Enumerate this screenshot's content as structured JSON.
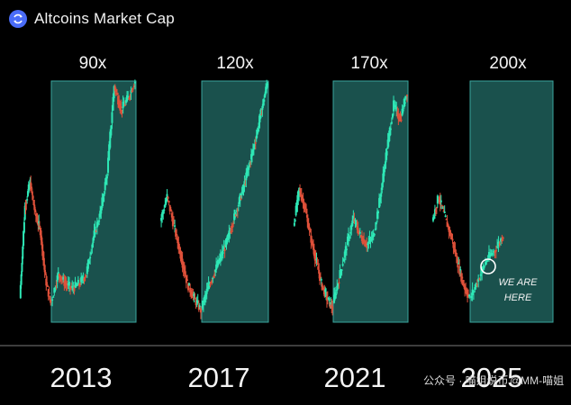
{
  "header": {
    "title": "Altcoins Market Cap",
    "logo_icon": "cycle-arrows-icon"
  },
  "annotation": {
    "text_line1": "WE ARE",
    "text_line2": "HERE"
  },
  "watermark": {
    "left": "公众号 · 喵姐说币",
    "right": "@MM-喵姐"
  },
  "colors": {
    "background": "#000000",
    "box": "#1e5f5b",
    "up": "#2ee8b6",
    "down": "#e0513a"
  },
  "chart_data": {
    "type": "line",
    "title": "Altcoins Market Cap",
    "note": "Four-panel stylized candlestick comparison of altcoin market cap cycles",
    "panels": [
      {
        "year": "2013",
        "multiplier": "90x",
        "pre_box": [
          0.1,
          0.48,
          0.58,
          0.45,
          0.38,
          0.18,
          0.08
        ],
        "box": [
          0.09,
          0.2,
          0.16,
          0.14,
          0.16,
          0.2,
          0.35,
          0.45,
          0.62,
          0.98,
          0.88,
          0.93,
          1.0
        ]
      },
      {
        "year": "2017",
        "multiplier": "120x",
        "pre_box": [
          0.42,
          0.52,
          0.4,
          0.28,
          0.16,
          0.1,
          0.05
        ],
        "box": [
          0.06,
          0.14,
          0.2,
          0.26,
          0.32,
          0.4,
          0.48,
          0.56,
          0.66,
          0.76,
          0.88,
          1.0
        ]
      },
      {
        "year": "2021",
        "multiplier": "170x",
        "pre_box": [
          0.4,
          0.55,
          0.48,
          0.36,
          0.26,
          0.16,
          0.1,
          0.06
        ],
        "box": [
          0.08,
          0.2,
          0.32,
          0.43,
          0.36,
          0.32,
          0.36,
          0.52,
          0.72,
          0.9,
          0.84,
          0.96
        ]
      },
      {
        "year": "2025",
        "multiplier": "200x",
        "pre_box": [
          0.42,
          0.52,
          0.44,
          0.36,
          0.26,
          0.16,
          0.1
        ],
        "box": [
          0.1,
          0.18,
          0.26,
          0.3,
          0.36
        ]
      }
    ]
  }
}
